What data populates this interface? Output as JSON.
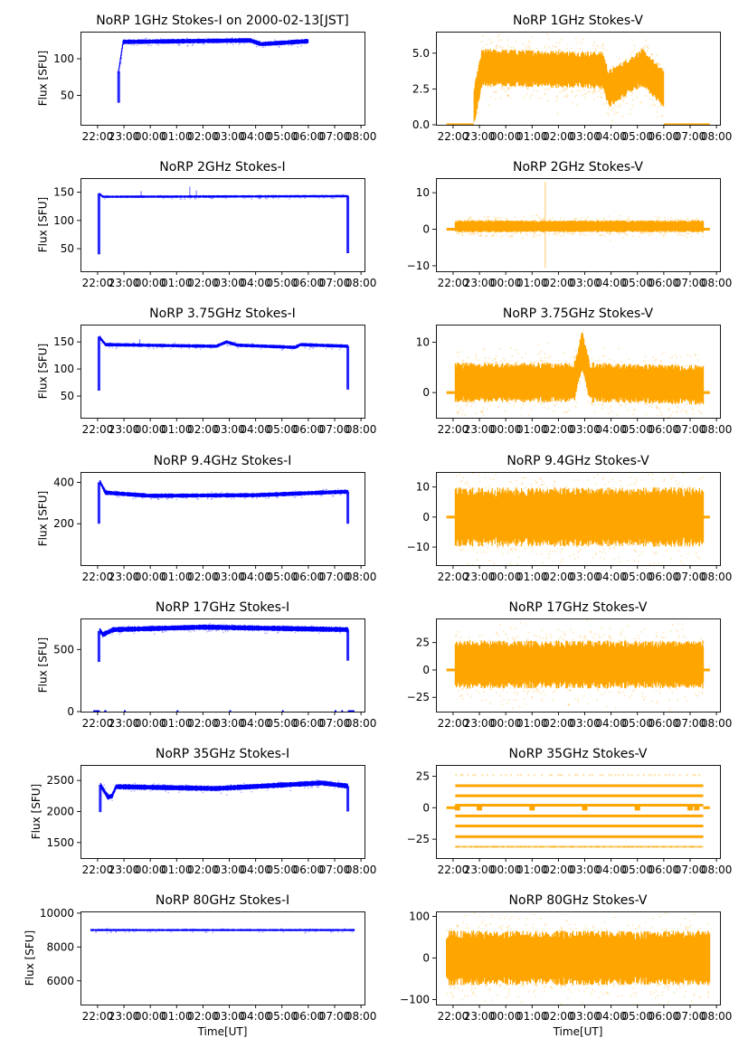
{
  "chart_data": {
    "type": "scatter",
    "layout": "7 rows x 2 columns",
    "colors": {
      "stokes_i": "#0000ff",
      "stokes_v": "#ffa500"
    },
    "x_axis": {
      "label": "Time[UT]",
      "range": [
        "21:21",
        "08:08"
      ],
      "tick_labels": [
        "22:00",
        "23:00",
        "00:00",
        "01:00",
        "02:00",
        "03:00",
        "04:00",
        "05:00",
        "06:00",
        "07:00",
        "08:00"
      ]
    },
    "panels": [
      {
        "id": "1ghz-i",
        "title": "NoRP 1GHz Stokes-I on 2000-02-13[JST]",
        "ylabel": "Flux [SFU]",
        "ylim": [
          10,
          137
        ],
        "yticks": [
          50,
          100
        ],
        "ytick_labels": [
          "50",
          "100"
        ],
        "color": "stokes_i",
        "x_span": [
          "22:48",
          "06:00"
        ],
        "level": [
          [
            22.8,
            83
          ],
          [
            22.97,
            123
          ],
          [
            3.8,
            125
          ],
          [
            4.2,
            120
          ],
          [
            6.0,
            124
          ]
        ],
        "spread": 3,
        "dips": [
          {
            "t": 22.8,
            "lo": 40,
            "hi": 83
          }
        ]
      },
      {
        "id": "1ghz-v",
        "title": "NoRP 1GHz Stokes-V",
        "ylabel": "",
        "ylim": [
          0,
          6.5
        ],
        "yticks": [
          0,
          2.5,
          5
        ],
        "ytick_labels": [
          "0.0",
          "2.5",
          "5.0"
        ],
        "color": "stokes_v",
        "x_span": [
          "22:48",
          "06:00"
        ],
        "level": [
          [
            22.8,
            1.3
          ],
          [
            23.1,
            4.0
          ],
          [
            3.7,
            3.8
          ],
          [
            3.9,
            2.5
          ],
          [
            5.2,
            4.0
          ],
          [
            6.0,
            2.5
          ]
        ],
        "spread": 1.2,
        "baseline": {
          "value": 0,
          "spans": [
            [
              "21:45",
              "22:47"
            ],
            [
              "06:00",
              "07:45"
            ]
          ]
        }
      },
      {
        "id": "2ghz-i",
        "title": "NoRP 2GHz Stokes-I",
        "ylabel": "Flux [SFU]",
        "ylim": [
          10,
          175
        ],
        "yticks": [
          50,
          100,
          150
        ],
        "ytick_labels": [
          "50",
          "100",
          "150"
        ],
        "color": "stokes_i",
        "x_span": [
          "22:05",
          "07:30"
        ],
        "level": [
          [
            22.05,
            148
          ],
          [
            22.2,
            142
          ],
          [
            7.5,
            143
          ]
        ],
        "spread": 2,
        "dips": [
          {
            "t": 22.05,
            "lo": 40,
            "hi": 148
          },
          {
            "t": 7.5,
            "lo": 42,
            "hi": 143
          }
        ],
        "spikes": [
          {
            "t": 23.65,
            "hi": 152
          },
          {
            "t": 1.5,
            "hi": 160
          },
          {
            "t": 1.75,
            "hi": 153
          }
        ]
      },
      {
        "id": "2ghz-v",
        "title": "NoRP 2GHz Stokes-V",
        "ylabel": "",
        "ylim": [
          -11.5,
          14
        ],
        "yticks": [
          -10,
          0,
          10
        ],
        "ytick_labels": [
          "−10",
          "0",
          "10"
        ],
        "color": "stokes_v",
        "x_span": [
          "22:05",
          "07:30"
        ],
        "level": [
          [
            22.05,
            0.8
          ],
          [
            7.5,
            0.8
          ]
        ],
        "spread": 1.5,
        "baseline": {
          "value": 0,
          "spans": [
            [
              "21:45",
              "22:05"
            ],
            [
              "07:30",
              "07:45"
            ]
          ]
        },
        "spikes": [
          {
            "t": 1.5,
            "hi": 13,
            "lo": -10.5
          }
        ]
      },
      {
        "id": "375ghz-i",
        "title": "NoRP 3.75GHz Stokes-I",
        "ylabel": "Flux [SFU]",
        "ylim": [
          10,
          182
        ],
        "yticks": [
          50,
          100,
          150
        ],
        "ytick_labels": [
          "50",
          "100",
          "150"
        ],
        "color": "stokes_i",
        "x_span": [
          "22:05",
          "07:30"
        ],
        "level": [
          [
            22.05,
            160
          ],
          [
            22.3,
            145
          ],
          [
            2.5,
            142
          ],
          [
            2.9,
            150
          ],
          [
            3.3,
            144
          ],
          [
            5.5,
            140
          ],
          [
            5.7,
            145
          ],
          [
            7.5,
            142
          ]
        ],
        "spread": 3,
        "dips": [
          {
            "t": 22.05,
            "lo": 60,
            "hi": 160
          },
          {
            "t": 7.5,
            "lo": 62,
            "hi": 142
          }
        ],
        "spikes": [
          {
            "t": 23.6,
            "hi": 155
          }
        ]
      },
      {
        "id": "375ghz-v",
        "title": "NoRP 3.75GHz Stokes-V",
        "ylabel": "",
        "ylim": [
          -5,
          13.5
        ],
        "yticks": [
          0,
          10
        ],
        "ytick_labels": [
          "0",
          "10"
        ],
        "color": "stokes_v",
        "x_span": [
          "22:05",
          "07:30"
        ],
        "level": [
          [
            22.05,
            2
          ],
          [
            2.6,
            2
          ],
          [
            2.9,
            8.5
          ],
          [
            3.2,
            2
          ],
          [
            7.5,
            1.5
          ]
        ],
        "spread": 3.6,
        "baseline": {
          "value": 0,
          "spans": [
            [
              "21:45",
              "22:05"
            ],
            [
              "07:30",
              "07:45"
            ]
          ]
        }
      },
      {
        "id": "94ghz-i",
        "title": "NoRP 9.4GHz Stokes-I",
        "ylabel": "Flux [SFU]",
        "ylim": [
          0,
          450
        ],
        "yticks": [
          200,
          400
        ],
        "ytick_labels": [
          "200",
          "400"
        ],
        "color": "stokes_i",
        "x_span": [
          "22:05",
          "07:30"
        ],
        "level": [
          [
            22.1,
            400
          ],
          [
            22.3,
            350
          ],
          [
            0.0,
            335
          ],
          [
            4.0,
            338
          ],
          [
            7.5,
            355
          ]
        ],
        "spread": 10,
        "dips": [
          {
            "t": 22.05,
            "lo": 200,
            "hi": 400
          },
          {
            "t": 7.5,
            "lo": 200,
            "hi": 355
          }
        ]
      },
      {
        "id": "94ghz-v",
        "title": "NoRP 9.4GHz Stokes-V",
        "ylabel": "",
        "ylim": [
          -16,
          15
        ],
        "yticks": [
          -10,
          0,
          10
        ],
        "ytick_labels": [
          "−10",
          "0",
          "10"
        ],
        "color": "stokes_v",
        "x_span": [
          "22:05",
          "07:30"
        ],
        "level": [
          [
            22.05,
            0
          ],
          [
            7.5,
            0
          ]
        ],
        "spread": 9,
        "baseline": {
          "value": 0,
          "spans": [
            [
              "21:45",
              "22:05"
            ],
            [
              "07:30",
              "07:45"
            ]
          ]
        }
      },
      {
        "id": "17ghz-i",
        "title": "NoRP 17GHz Stokes-I",
        "ylabel": "Flux [SFU]",
        "ylim": [
          0,
          750
        ],
        "yticks": [
          0,
          500
        ],
        "ytick_labels": [
          "0",
          "500"
        ],
        "color": "stokes_i",
        "x_span": [
          "22:05",
          "07:30"
        ],
        "level": [
          [
            22.1,
            650
          ],
          [
            22.2,
            620
          ],
          [
            22.6,
            660
          ],
          [
            2.0,
            680
          ],
          [
            7.5,
            660
          ]
        ],
        "spread": 20,
        "dips": [
          {
            "t": 22.05,
            "lo": 400,
            "hi": 650
          },
          {
            "t": 7.5,
            "lo": 410,
            "hi": 660
          }
        ],
        "baseline": {
          "value": 0,
          "spans": [
            [
              "21:50",
              "22:05"
            ],
            [
              "22:15",
              "22:20"
            ],
            [
              "23:00",
              "23:02"
            ],
            [
              "01:00",
              "01:02"
            ],
            [
              "03:00",
              "03:02"
            ],
            [
              "05:00",
              "05:02"
            ],
            [
              "07:00",
              "07:02"
            ],
            [
              "07:15",
              "07:18"
            ],
            [
              "07:30",
              "07:45"
            ]
          ]
        }
      },
      {
        "id": "17ghz-v",
        "title": "NoRP 17GHz Stokes-V",
        "ylabel": "",
        "ylim": [
          -38,
          47
        ],
        "yticks": [
          -25,
          0,
          25
        ],
        "ytick_labels": [
          "−25",
          "0",
          "25"
        ],
        "color": "stokes_v",
        "x_span": [
          "22:05",
          "07:30"
        ],
        "level": [
          [
            22.05,
            5
          ],
          [
            7.5,
            5
          ]
        ],
        "spread": 20,
        "baseline": {
          "value": 0,
          "spans": [
            [
              "21:45",
              "22:05"
            ],
            [
              "07:30",
              "07:45"
            ]
          ]
        }
      },
      {
        "id": "35ghz-i",
        "title": "NoRP 35GHz Stokes-I",
        "ylabel": "Flux [SFU]",
        "ylim": [
          1250,
          2750
        ],
        "yticks": [
          1500,
          2000,
          2500
        ],
        "ytick_labels": [
          "1500",
          "2000",
          "2500"
        ],
        "color": "stokes_i",
        "x_span": [
          "22:07",
          "07:30"
        ],
        "level": [
          [
            22.1,
            2430
          ],
          [
            22.4,
            2230
          ],
          [
            22.55,
            2250
          ],
          [
            22.7,
            2400
          ],
          [
            2.5,
            2370
          ],
          [
            6.5,
            2460
          ],
          [
            7.5,
            2410
          ]
        ],
        "spread": 40,
        "dips": [
          {
            "t": 22.1,
            "lo": 1990,
            "hi": 2430
          },
          {
            "t": 7.5,
            "lo": 2000,
            "hi": 2410
          }
        ]
      },
      {
        "id": "35ghz-v",
        "title": "NoRP 35GHz Stokes-V",
        "ylabel": "",
        "ylim": [
          -40,
          34
        ],
        "yticks": [
          -25,
          0,
          25
        ],
        "ytick_labels": [
          "−25",
          "0",
          "25"
        ],
        "color": "stokes_v",
        "x_span": [
          "22:05",
          "07:30"
        ],
        "quantized_levels": [
          26,
          17.5,
          9.5,
          2,
          -6.5,
          -14.5,
          -23,
          -31
        ],
        "baseline": {
          "value": 0,
          "spans": [
            [
              "21:45",
              "22:05"
            ],
            [
              "07:30",
              "07:45"
            ]
          ]
        },
        "marks_at_zero": [
          "22:10",
          "23:00",
          "01:00",
          "03:00",
          "05:00",
          "07:00",
          "07:15"
        ]
      },
      {
        "id": "80ghz-i",
        "title": "NoRP 80GHz Stokes-I",
        "ylabel": "Flux [SFU]",
        "xlabel": "Time[UT]",
        "ylim": [
          4600,
          10100
        ],
        "yticks": [
          6000,
          8000,
          10000
        ],
        "ytick_labels": [
          "6000",
          "8000",
          "10000"
        ],
        "color": "stokes_i",
        "x_span": [
          "21:45",
          "07:45"
        ],
        "level": [
          [
            21.75,
            9000
          ],
          [
            7.75,
            9000
          ]
        ],
        "spread": 60
      },
      {
        "id": "80ghz-v",
        "title": "NoRP 80GHz Stokes-V",
        "ylabel": "",
        "xlabel": "Time[UT]",
        "ylim": [
          -112,
          112
        ],
        "yticks": [
          -100,
          0,
          100
        ],
        "ytick_labels": [
          "−100",
          "0",
          "100"
        ],
        "color": "stokes_v",
        "x_span": [
          "21:45",
          "07:45"
        ],
        "level": [
          [
            21.75,
            0
          ],
          [
            7.75,
            0
          ]
        ],
        "spread": 60
      }
    ]
  }
}
